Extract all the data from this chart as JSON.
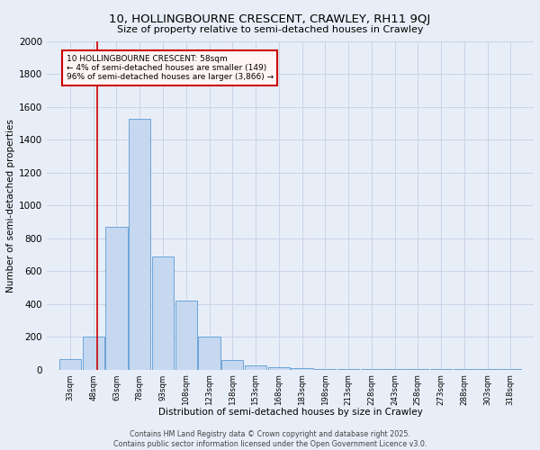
{
  "title": "10, HOLLINGBOURNE CRESCENT, CRAWLEY, RH11 9QJ",
  "subtitle": "Size of property relative to semi-detached houses in Crawley",
  "xlabel": "Distribution of semi-detached houses by size in Crawley",
  "ylabel": "Number of semi-detached properties",
  "footnote1": "Contains HM Land Registry data © Crown copyright and database right 2025.",
  "footnote2": "Contains public sector information licensed under the Open Government Licence v3.0.",
  "annotation_title": "10 HOLLINGBOURNE CRESCENT: 58sqm",
  "annotation_line1": "← 4% of semi-detached houses are smaller (149)",
  "annotation_line2": "96% of semi-detached houses are larger (3,866) →",
  "property_size": 58,
  "bar_edges": [
    33,
    48,
    63,
    78,
    93,
    108,
    123,
    138,
    153,
    168,
    183,
    198,
    213,
    228,
    243,
    258,
    273,
    288,
    303,
    318,
    333
  ],
  "bar_heights": [
    63,
    200,
    870,
    1530,
    690,
    420,
    200,
    60,
    25,
    15,
    10,
    5,
    3,
    2,
    1,
    1,
    1,
    1,
    1,
    1
  ],
  "bar_color": "#c5d8f0",
  "bar_edge_color": "#5b9bd5",
  "red_line_color": "#cc0000",
  "annotation_box_facecolor": "#fff5f5",
  "annotation_border_color": "#cc0000",
  "grid_color": "#c8d4e8",
  "bg_color": "#e8eef8",
  "ylim": [
    0,
    2000
  ],
  "yticks": [
    0,
    200,
    400,
    600,
    800,
    1000,
    1200,
    1400,
    1600,
    1800,
    2000
  ]
}
